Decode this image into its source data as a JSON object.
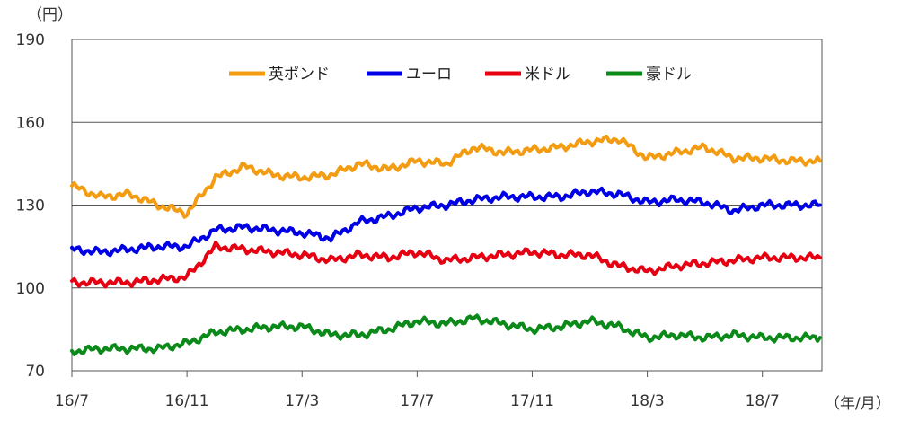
{
  "chart_data": {
    "type": "line",
    "title": "",
    "xlabel": "",
    "ylabel": "",
    "y_unit_label": "（円）",
    "x_unit_label": "（年/月）",
    "ylim": [
      70,
      190
    ],
    "yticks": [
      70,
      100,
      130,
      160,
      190
    ],
    "xlim": [
      "2016-07",
      "2018-09"
    ],
    "xticks": [
      "16/7",
      "16/11",
      "17/3",
      "17/7",
      "17/11",
      "18/3",
      "18/7"
    ],
    "grid": true,
    "legend_position": "top-center",
    "x": [
      "2016-07",
      "2016-08",
      "2016-09",
      "2016-10",
      "2016-11",
      "2016-12",
      "2017-01",
      "2017-02",
      "2017-03",
      "2017-04",
      "2017-05",
      "2017-06",
      "2017-07",
      "2017-08",
      "2017-09",
      "2017-10",
      "2017-11",
      "2017-12",
      "2018-01",
      "2018-02",
      "2018-03",
      "2018-04",
      "2018-05",
      "2018-06",
      "2018-07",
      "2018-08",
      "2018-09"
    ],
    "series": [
      {
        "name": "英ポンド",
        "color": "#f39c12",
        "values": [
          137,
          133,
          134,
          130,
          127,
          140,
          144,
          141,
          140,
          141,
          145,
          143,
          146,
          145,
          151,
          149,
          150,
          151,
          153,
          154,
          147,
          149,
          151,
          147,
          147,
          146,
          146
        ]
      },
      {
        "name": "ユーロ",
        "color": "#0000e6",
        "values": [
          114,
          113,
          114,
          115,
          115,
          121,
          122,
          121,
          120,
          118,
          124,
          126,
          129,
          130,
          132,
          133,
          133,
          133,
          135,
          134,
          131,
          132,
          131,
          128,
          130,
          130,
          130
        ]
      },
      {
        "name": "米ドル",
        "color": "#e60012",
        "values": [
          102,
          102,
          102,
          103,
          104,
          115,
          114,
          113,
          112,
          110,
          112,
          111,
          113,
          110,
          111,
          112,
          113,
          112,
          112,
          108,
          106,
          108,
          109,
          110,
          111,
          111,
          111
        ]
      },
      {
        "name": "豪ドル",
        "color": "#0b8a1a",
        "values": [
          77,
          78,
          78,
          78,
          80,
          84,
          85,
          86,
          86,
          83,
          83,
          85,
          88,
          87,
          89,
          87,
          85,
          86,
          88,
          86,
          82,
          83,
          82,
          83,
          82,
          82,
          82
        ]
      }
    ]
  }
}
